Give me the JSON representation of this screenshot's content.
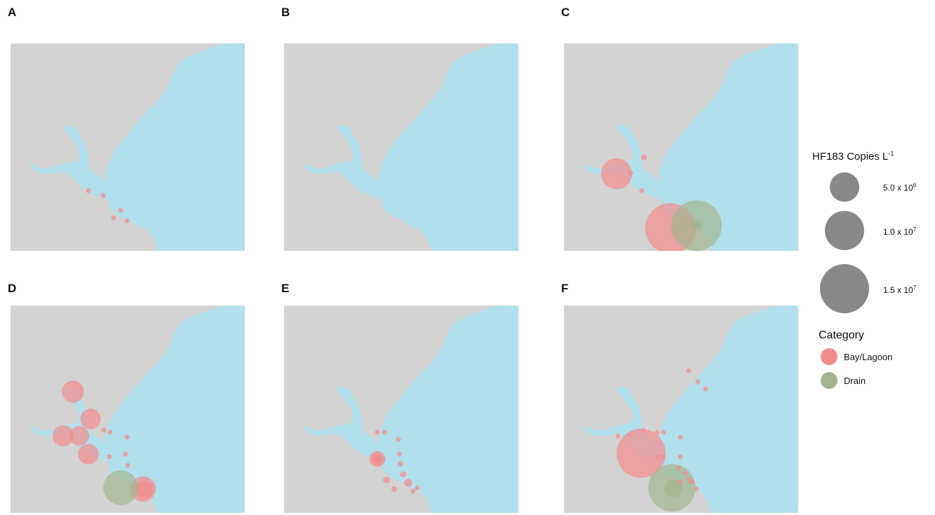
{
  "colors": {
    "land": "#d3d3d3",
    "water": "#b2dfec",
    "bay_lagoon": "#f28b8b",
    "drain": "#a3b58f",
    "size_key": "#888888"
  },
  "panels": [
    {
      "label": "A",
      "points": [
        {
          "category": "Bay/Lagoon",
          "copies_per_L": 150000.0
        },
        {
          "category": "Bay/Lagoon",
          "copies_per_L": 150000.0
        },
        {
          "category": "Bay/Lagoon",
          "copies_per_L": 150000.0
        },
        {
          "category": "Bay/Lagoon",
          "copies_per_L": 150000.0
        },
        {
          "category": "Bay/Lagoon",
          "copies_per_L": 150000.0
        }
      ]
    },
    {
      "label": "B",
      "points": []
    },
    {
      "label": "C",
      "points": [
        {
          "category": "Bay/Lagoon",
          "copies_per_L": 6000000.0
        },
        {
          "category": "Bay/Lagoon",
          "copies_per_L": 150000.0
        },
        {
          "category": "Bay/Lagoon",
          "copies_per_L": 200000.0
        },
        {
          "category": "Bay/Lagoon",
          "copies_per_L": 150000.0
        },
        {
          "category": "Bay/Lagoon",
          "copies_per_L": 16000000.0
        },
        {
          "category": "Drain",
          "copies_per_L": 16000000.0
        },
        {
          "category": "Drain",
          "copies_per_L": 800000.0
        },
        {
          "category": "Drain",
          "copies_per_L": 200000.0
        }
      ]
    },
    {
      "label": "D",
      "points": [
        {
          "category": "Bay/Lagoon",
          "copies_per_L": 3000000.0
        },
        {
          "category": "Bay/Lagoon",
          "copies_per_L": 2600000.0
        },
        {
          "category": "Bay/Lagoon",
          "copies_per_L": 2800000.0
        },
        {
          "category": "Bay/Lagoon",
          "copies_per_L": 2400000.0
        },
        {
          "category": "Bay/Lagoon",
          "copies_per_L": 2600000.0
        },
        {
          "category": "Bay/Lagoon",
          "copies_per_L": 4000000.0
        },
        {
          "category": "Bay/Lagoon",
          "copies_per_L": 2000000.0
        },
        {
          "category": "Drain",
          "copies_per_L": 7500000.0
        },
        {
          "category": "Bay/Lagoon",
          "copies_per_L": 10000.0
        },
        {
          "category": "Bay/Lagoon",
          "copies_per_L": 10000.0
        },
        {
          "category": "Bay/Lagoon",
          "copies_per_L": 10000.0
        },
        {
          "category": "Bay/Lagoon",
          "copies_per_L": 10000.0
        },
        {
          "category": "Bay/Lagoon",
          "copies_per_L": 10000.0
        },
        {
          "category": "Bay/Lagoon",
          "copies_per_L": 10000.0
        }
      ]
    },
    {
      "label": "E",
      "points": [
        {
          "category": "Bay/Lagoon",
          "copies_per_L": 1600000.0
        },
        {
          "category": "Bay/Lagoon",
          "copies_per_L": 800000.0
        },
        {
          "category": "Bay/Lagoon",
          "copies_per_L": 400000.0
        },
        {
          "category": "Bay/Lagoon",
          "copies_per_L": 150000.0
        },
        {
          "category": "Bay/Lagoon",
          "copies_per_L": 150000.0
        },
        {
          "category": "Bay/Lagoon",
          "copies_per_L": 150000.0
        },
        {
          "category": "Bay/Lagoon",
          "copies_per_L": 100000.0
        },
        {
          "category": "Bay/Lagoon",
          "copies_per_L": 200000.0
        },
        {
          "category": "Bay/Lagoon",
          "copies_per_L": 250000.0
        },
        {
          "category": "Bay/Lagoon",
          "copies_per_L": 400000.0
        },
        {
          "category": "Bay/Lagoon",
          "copies_per_L": 300000.0
        },
        {
          "category": "Bay/Lagoon",
          "copies_per_L": 200000.0
        },
        {
          "category": "Bay/Lagoon",
          "copies_per_L": 100000.0
        },
        {
          "category": "Bay/Lagoon",
          "copies_per_L": 100000.0
        }
      ]
    },
    {
      "label": "F",
      "points": [
        {
          "category": "Bay/Lagoon",
          "copies_per_L": 15000000.0
        },
        {
          "category": "Drain",
          "copies_per_L": 14000000.0
        },
        {
          "category": "Drain",
          "copies_per_L": 2000000.0
        },
        {
          "category": "Bay/Lagoon",
          "copies_per_L": 150000.0
        },
        {
          "category": "Bay/Lagoon",
          "copies_per_L": 100000.0
        },
        {
          "category": "Bay/Lagoon",
          "copies_per_L": 100000.0
        },
        {
          "category": "Bay/Lagoon",
          "copies_per_L": 100000.0
        },
        {
          "category": "Bay/Lagoon",
          "copies_per_L": 100000.0
        },
        {
          "category": "Bay/Lagoon",
          "copies_per_L": 100000.0
        },
        {
          "category": "Bay/Lagoon",
          "copies_per_L": 100000.0
        },
        {
          "category": "Bay/Lagoon",
          "copies_per_L": 100000.0
        },
        {
          "category": "Bay/Lagoon",
          "copies_per_L": 100000.0
        },
        {
          "category": "Bay/Lagoon",
          "copies_per_L": 100000.0
        },
        {
          "category": "Bay/Lagoon",
          "copies_per_L": 100000.0
        },
        {
          "category": "Bay/Lagoon",
          "copies_per_L": 100000.0
        },
        {
          "category": "Bay/Lagoon",
          "copies_per_L": 100000.0
        },
        {
          "category": "Bay/Lagoon",
          "copies_per_L": 100000.0
        },
        {
          "category": "Bay/Lagoon",
          "copies_per_L": 100000.0
        },
        {
          "category": "Bay/Lagoon",
          "copies_per_L": 100000.0
        },
        {
          "category": "Bay/Lagoon",
          "copies_per_L": 100000.0
        },
        {
          "category": "Bay/Lagoon",
          "copies_per_L": 100000.0
        }
      ]
    }
  ],
  "legend": {
    "size": {
      "title_main": "HF183 Copies L",
      "title_sup": "-1",
      "entries": [
        {
          "value": 5000000.0,
          "mantissa": "5.0 x 10",
          "exponent": "6"
        },
        {
          "value": 10000000.0,
          "mantissa": "1.0 x 10",
          "exponent": "7"
        },
        {
          "value": 15000000.0,
          "mantissa": "1.5 x 10",
          "exponent": "7"
        }
      ]
    },
    "category": {
      "title": "Category",
      "items": [
        {
          "label": "Bay/Lagoon",
          "color_key": "bay_lagoon"
        },
        {
          "label": "Drain",
          "color_key": "drain"
        }
      ]
    }
  }
}
